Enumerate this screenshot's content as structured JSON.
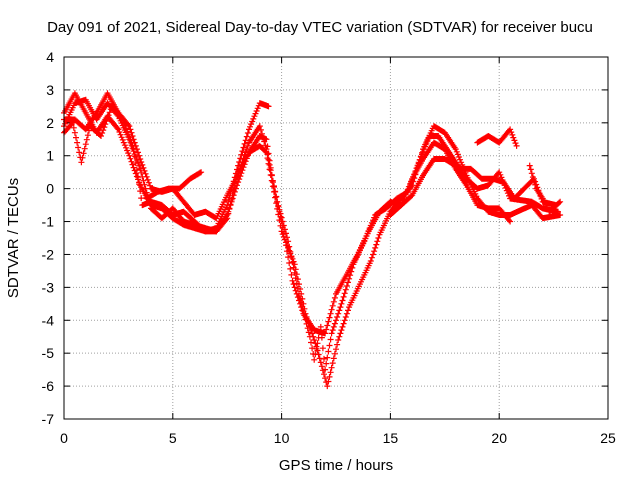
{
  "chart_data": {
    "type": "scatter",
    "title": "Day 091 of 2021, Sidereal Day-to-day VTEC variation (SDTVAR) for receiver bucu",
    "xlabel": "GPS time / hours",
    "ylabel": "SDTVAR / TECUs",
    "xlim": [
      0,
      25
    ],
    "ylim": [
      -7,
      4
    ],
    "x_ticks": [
      "0",
      "5",
      "10",
      "15",
      "20",
      "25"
    ],
    "y_ticks": [
      "4",
      "3",
      "2",
      "1",
      "0",
      "-1",
      "-2",
      "-3",
      "-4",
      "-5",
      "-6",
      "-7"
    ],
    "grid": true,
    "marker": "+",
    "colors": {
      "series": "#ff0000",
      "grid": "#a0a0a0",
      "frame": "#000000"
    },
    "series": [
      {
        "values": [
          [
            0,
            1.9
          ],
          [
            0.5,
            2.6
          ],
          [
            1.0,
            2.7
          ],
          [
            1.5,
            2.1
          ],
          [
            2.0,
            2.6
          ],
          [
            2.5,
            2.2
          ],
          [
            3.0,
            1.5
          ],
          [
            3.5,
            0.6
          ],
          [
            4.0,
            -0.6
          ],
          [
            4.5,
            -0.9
          ],
          [
            5.0,
            -0.6
          ],
          [
            5.5,
            -1.0
          ],
          [
            6.0,
            -1.1
          ],
          [
            6.5,
            -1.2
          ],
          [
            7.0,
            -1.3
          ],
          [
            7.5,
            -0.8
          ],
          [
            8.0,
            0.2
          ],
          [
            8.5,
            1.1
          ],
          [
            9.0,
            1.6
          ],
          [
            9.3,
            1.5
          ],
          [
            9.6,
            0.2
          ],
          [
            10.0,
            -1.0
          ],
          [
            10.5,
            -2.8
          ],
          [
            11.0,
            -3.8
          ],
          [
            11.5,
            -4.3
          ],
          [
            12.0,
            -4.4
          ],
          [
            12.5,
            -3.2
          ],
          [
            13.0,
            -2.6
          ],
          [
            13.5,
            -2.0
          ],
          [
            14.0,
            -1.3
          ],
          [
            14.5,
            -0.7
          ],
          [
            15.0,
            -0.4
          ],
          [
            15.5,
            -0.5
          ],
          [
            16.0,
            -0.2
          ],
          [
            16.5,
            0.4
          ],
          [
            17.0,
            0.9
          ],
          [
            17.5,
            0.9
          ],
          [
            18.0,
            0.7
          ],
          [
            18.5,
            0.3
          ],
          [
            19.0,
            0.0
          ],
          [
            19.5,
            0.1
          ],
          [
            20.0,
            0.5
          ],
          [
            20.5,
            -0.3
          ],
          [
            21.5,
            -0.4
          ],
          [
            22.0,
            -0.6
          ],
          [
            22.7,
            -0.7
          ]
        ]
      },
      {
        "values": [
          [
            0,
            2.3
          ],
          [
            0.5,
            2.9
          ],
          [
            1.0,
            2.3
          ],
          [
            1.5,
            1.7
          ],
          [
            2.0,
            2.2
          ],
          [
            2.5,
            1.8
          ],
          [
            3.0,
            1.0
          ],
          [
            3.5,
            0.1
          ],
          [
            4.0,
            -0.5
          ],
          [
            4.5,
            -0.6
          ],
          [
            5.0,
            -0.9
          ],
          [
            5.5,
            -1.1
          ],
          [
            6.0,
            -1.2
          ],
          [
            6.5,
            -1.3
          ],
          [
            7.0,
            -1.2
          ],
          [
            7.5,
            -0.5
          ],
          [
            8.0,
            0.7
          ],
          [
            8.5,
            1.8
          ],
          [
            9.0,
            2.6
          ],
          [
            9.4,
            2.5
          ]
        ]
      },
      {
        "values": [
          [
            0,
            2.1
          ],
          [
            0.5,
            2.1
          ],
          [
            1.0,
            1.8
          ],
          [
            1.5,
            2.3
          ],
          [
            2.0,
            2.9
          ],
          [
            2.5,
            2.3
          ],
          [
            3.0,
            1.9
          ],
          [
            3.5,
            0.9
          ],
          [
            4.0,
            0.0
          ],
          [
            4.5,
            -0.1
          ],
          [
            5.0,
            0.0
          ],
          [
            5.5,
            -0.4
          ],
          [
            6.0,
            -0.8
          ],
          [
            6.5,
            -0.7
          ],
          [
            7.0,
            -0.9
          ],
          [
            7.5,
            -0.2
          ],
          [
            8.0,
            0.4
          ],
          [
            8.5,
            1.4
          ],
          [
            9.0,
            1.9
          ],
          [
            9.3,
            1.2
          ],
          [
            9.8,
            -0.4
          ],
          [
            10.3,
            -1.6
          ],
          [
            10.8,
            -3.2
          ],
          [
            11.3,
            -4.5
          ],
          [
            11.5,
            -5.2
          ],
          [
            11.8,
            -4.2
          ],
          [
            12.0,
            -5.5
          ],
          [
            12.3,
            -4.4
          ],
          [
            12.8,
            -3.4
          ],
          [
            13.3,
            -2.3
          ],
          [
            13.8,
            -1.6
          ],
          [
            14.3,
            -0.8
          ],
          [
            14.8,
            -0.6
          ],
          [
            15.3,
            -0.3
          ],
          [
            15.8,
            -0.1
          ],
          [
            16.3,
            0.8
          ],
          [
            16.8,
            1.6
          ],
          [
            17.2,
            1.6
          ],
          [
            17.7,
            1.1
          ],
          [
            18.2,
            0.6
          ],
          [
            18.7,
            0.6
          ],
          [
            19.2,
            0.3
          ],
          [
            19.7,
            0.3
          ],
          [
            20.2,
            0.2
          ],
          [
            20.7,
            -0.3
          ],
          [
            21.6,
            0.3
          ],
          [
            22.0,
            -0.4
          ],
          [
            22.6,
            -0.5
          ]
        ]
      },
      {
        "values": [
          [
            0,
            1.7
          ],
          [
            0.4,
            2.0
          ],
          [
            0.8,
            0.8
          ],
          [
            1.2,
            1.9
          ],
          [
            1.7,
            1.6
          ],
          [
            2.2,
            2.5
          ],
          [
            2.7,
            2.1
          ],
          [
            3.2,
            1.2
          ],
          [
            3.6,
            -0.5
          ],
          [
            4.0,
            -0.4
          ],
          [
            4.5,
            -0.5
          ],
          [
            5.0,
            -0.8
          ],
          [
            5.5,
            -0.7
          ],
          [
            6.0,
            -1.0
          ],
          [
            6.5,
            -1.3
          ],
          [
            7.0,
            -1.3
          ],
          [
            7.5,
            -0.9
          ],
          [
            8.0,
            0.5
          ],
          [
            8.5,
            1.1
          ],
          [
            9.0,
            1.3
          ],
          [
            9.3,
            1.1
          ],
          [
            10.0,
            -1.3
          ],
          [
            10.6,
            -2.3
          ],
          [
            11.1,
            -3.8
          ],
          [
            11.6,
            -4.8
          ],
          [
            12.1,
            -6.0
          ],
          [
            12.6,
            -4.6
          ],
          [
            13.1,
            -3.6
          ],
          [
            13.6,
            -2.9
          ],
          [
            14.1,
            -2.2
          ],
          [
            14.5,
            -1.4
          ],
          [
            15.0,
            -0.7
          ],
          [
            15.5,
            -0.3
          ],
          [
            16.0,
            0.1
          ],
          [
            16.5,
            1.2
          ],
          [
            17.0,
            1.9
          ],
          [
            17.5,
            1.7
          ],
          [
            18.0,
            1.2
          ],
          [
            18.5,
            0.4
          ],
          [
            19.0,
            -0.3
          ],
          [
            19.5,
            -0.7
          ],
          [
            20.0,
            -0.8
          ],
          [
            20.5,
            -0.8
          ],
          [
            21.5,
            -0.5
          ],
          [
            22.0,
            -0.9
          ],
          [
            22.8,
            -0.8
          ]
        ]
      },
      {
        "values": [
          [
            3.8,
            -0.3
          ],
          [
            4.3,
            -0.1
          ],
          [
            4.8,
            0.0
          ],
          [
            5.3,
            0.0
          ],
          [
            5.8,
            0.3
          ],
          [
            6.3,
            0.5
          ]
        ]
      },
      {
        "values": [
          [
            15.0,
            -0.8
          ],
          [
            15.5,
            -0.5
          ],
          [
            16.0,
            0.3
          ],
          [
            16.5,
            0.9
          ],
          [
            17.0,
            1.4
          ],
          [
            17.5,
            1.2
          ],
          [
            18.0,
            0.6
          ],
          [
            18.5,
            0.1
          ],
          [
            19.0,
            -0.5
          ],
          [
            19.5,
            -0.6
          ],
          [
            20.0,
            -0.6
          ],
          [
            20.5,
            -1.0
          ]
        ]
      },
      {
        "values": [
          [
            19.0,
            1.4
          ],
          [
            19.5,
            1.6
          ],
          [
            20.0,
            1.4
          ],
          [
            20.5,
            1.8
          ],
          [
            20.8,
            1.3
          ]
        ]
      },
      {
        "values": [
          [
            21.4,
            0.7
          ],
          [
            21.7,
            0.0
          ],
          [
            22.0,
            -0.3
          ],
          [
            22.3,
            -0.7
          ],
          [
            22.8,
            -0.4
          ]
        ]
      }
    ]
  }
}
